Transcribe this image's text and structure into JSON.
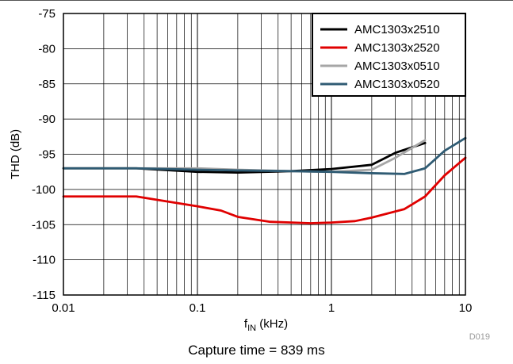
{
  "chart_data": {
    "type": "line",
    "xscale": "log",
    "xlim": [
      0.01,
      10
    ],
    "ylim": [
      -115,
      -75
    ],
    "xticks": [
      0.01,
      0.1,
      1,
      10
    ],
    "xtick_labels": [
      "0.01",
      "0.1",
      "1",
      "10"
    ],
    "yticks": [
      -75,
      -80,
      -85,
      -90,
      -95,
      -100,
      -105,
      -110,
      -115
    ],
    "ylabel": "THD (dB)",
    "xlabel_main": "f",
    "xlabel_sub": "IN",
    "xlabel_unit": " (kHz)",
    "grid": true,
    "legend_position": "top-right",
    "figure_id": "D019",
    "series": [
      {
        "name": "AMC1303x2510",
        "color": "#000000",
        "x": [
          0.01,
          0.035,
          0.1,
          0.2,
          0.5,
          1,
          2,
          3,
          5
        ],
        "y": [
          -97,
          -97,
          -97.5,
          -97.6,
          -97.4,
          -97.1,
          -96.5,
          -94.8,
          -93.4
        ]
      },
      {
        "name": "AMC1303x2520",
        "color": "#e00000",
        "x": [
          0.01,
          0.035,
          0.1,
          0.15,
          0.2,
          0.35,
          0.7,
          1,
          1.5,
          2,
          3.5,
          5,
          7,
          10
        ],
        "y": [
          -101,
          -101,
          -102.4,
          -103,
          -103.9,
          -104.6,
          -104.8,
          -104.7,
          -104.5,
          -104,
          -102.8,
          -101,
          -98,
          -95.5
        ]
      },
      {
        "name": "AMC1303x0510",
        "color": "#a6a6a6",
        "x": [
          0.01,
          0.035,
          0.1,
          0.2,
          0.5,
          1,
          2,
          3,
          5
        ],
        "y": [
          -97,
          -97,
          -97,
          -97.2,
          -97.4,
          -97.5,
          -97.2,
          -95.5,
          -93
        ]
      },
      {
        "name": "AMC1303x0520",
        "color": "#2f5b73",
        "x": [
          0.01,
          0.035,
          0.1,
          0.2,
          0.5,
          1,
          2,
          3.5,
          5,
          7,
          10
        ],
        "y": [
          -97,
          -97,
          -97.2,
          -97.3,
          -97.4,
          -97.5,
          -97.7,
          -97.8,
          -97,
          -94.5,
          -92.7
        ]
      }
    ]
  },
  "caption": "Capture time = 839 ms"
}
